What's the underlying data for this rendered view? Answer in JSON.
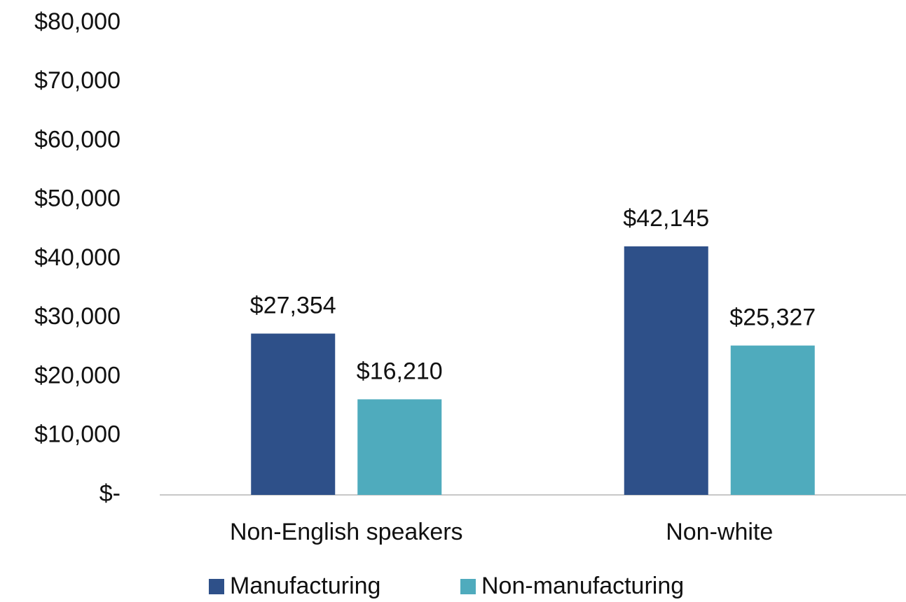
{
  "chart_data": {
    "type": "bar",
    "categories": [
      "Non-English speakers",
      "Non-white"
    ],
    "series": [
      {
        "name": "Manufacturing",
        "color": "#2e5089",
        "values": [
          27354,
          42145
        ],
        "value_labels": [
          "$27,354",
          "$42,145"
        ]
      },
      {
        "name": "Non-manufacturing",
        "color": "#4fabbd",
        "values": [
          16210,
          25327
        ],
        "value_labels": [
          "$16,210",
          "$25,327"
        ]
      }
    ],
    "ylim": [
      0,
      80000
    ],
    "yticks": [
      {
        "value": 0,
        "label": "$-"
      },
      {
        "value": 10000,
        "label": "$10,000"
      },
      {
        "value": 20000,
        "label": "$20,000"
      },
      {
        "value": 30000,
        "label": "$30,000"
      },
      {
        "value": 40000,
        "label": "$40,000"
      },
      {
        "value": 50000,
        "label": "$50,000"
      },
      {
        "value": 60000,
        "label": "$60,000"
      },
      {
        "value": 70000,
        "label": "$70,000"
      },
      {
        "value": 80000,
        "label": "$80,000"
      }
    ],
    "grid": false,
    "legend": "bottom"
  }
}
